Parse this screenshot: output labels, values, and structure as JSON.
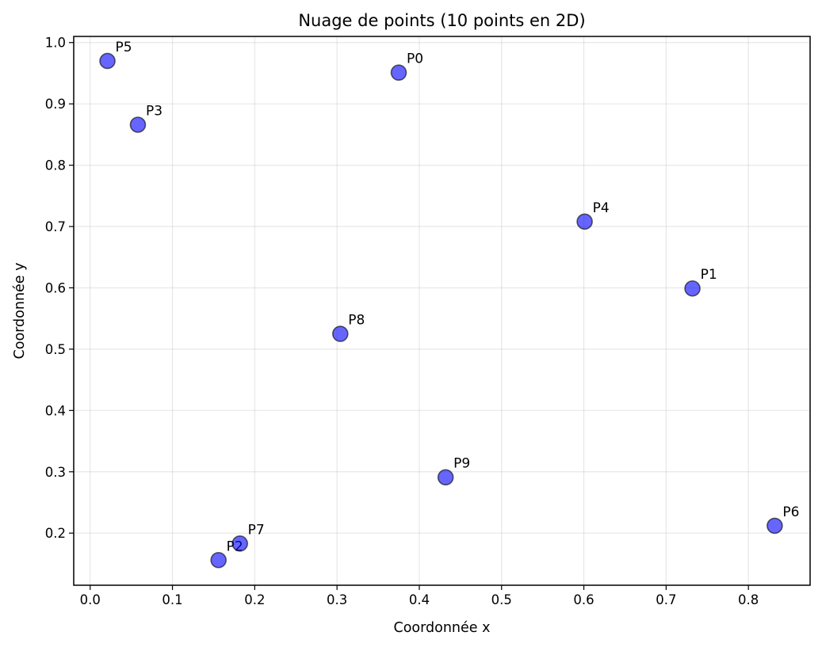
{
  "chart_data": {
    "type": "scatter",
    "title": "Nuage de points (10 points en 2D)",
    "xlabel": "Coordonnée x",
    "ylabel": "Coordonnée y",
    "xlim": [
      -0.02,
      0.875
    ],
    "ylim": [
      0.115,
      1.01
    ],
    "xticks": [
      "0.0",
      "0.1",
      "0.2",
      "0.3",
      "0.4",
      "0.5",
      "0.6",
      "0.7",
      "0.8"
    ],
    "yticks": [
      "0.2",
      "0.3",
      "0.4",
      "0.5",
      "0.6",
      "0.7",
      "0.8",
      "0.9",
      "1.0"
    ],
    "grid": true,
    "marker_color": "#0000ff",
    "points": [
      {
        "label": "P0",
        "x": 0.375,
        "y": 0.951
      },
      {
        "label": "P1",
        "x": 0.732,
        "y": 0.599
      },
      {
        "label": "P2",
        "x": 0.156,
        "y": 0.156
      },
      {
        "label": "P3",
        "x": 0.058,
        "y": 0.866
      },
      {
        "label": "P4",
        "x": 0.601,
        "y": 0.708
      },
      {
        "label": "P5",
        "x": 0.021,
        "y": 0.97
      },
      {
        "label": "P6",
        "x": 0.832,
        "y": 0.212
      },
      {
        "label": "P7",
        "x": 0.182,
        "y": 0.183
      },
      {
        "label": "P8",
        "x": 0.304,
        "y": 0.525
      },
      {
        "label": "P9",
        "x": 0.432,
        "y": 0.291
      }
    ]
  }
}
